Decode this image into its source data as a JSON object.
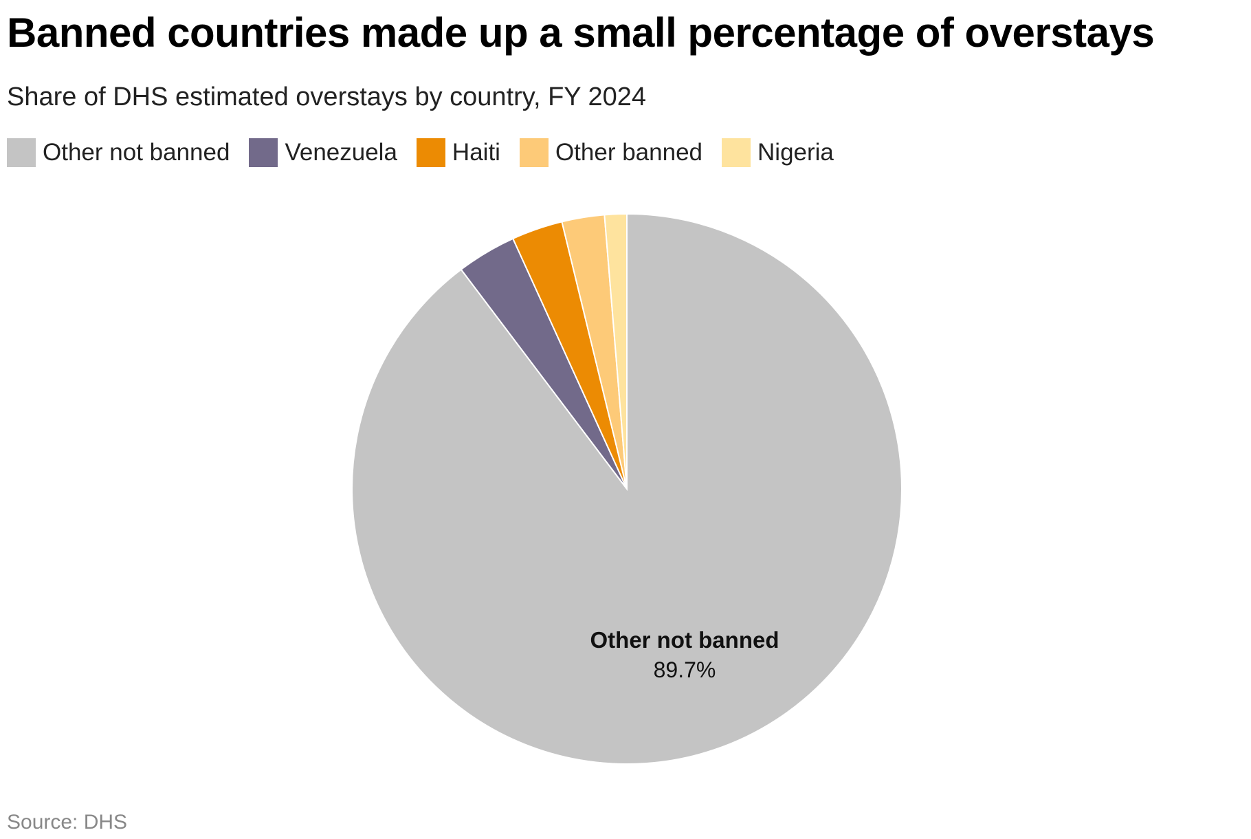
{
  "header": {
    "title": "Banned countries made up a small percentage of overstays",
    "subtitle": "Share of DHS estimated overstays by country, FY 2024"
  },
  "legend": [
    {
      "label": "Other not banned",
      "color": "#c4c4c4"
    },
    {
      "label": "Venezuela",
      "color": "#726a8a"
    },
    {
      "label": "Haiti",
      "color": "#ec8b03"
    },
    {
      "label": "Other banned",
      "color": "#fdca78"
    },
    {
      "label": "Nigeria",
      "color": "#fee39e"
    }
  ],
  "slice_label": {
    "name": "Other not banned",
    "value": "89.7%"
  },
  "footer": {
    "source": "Source: DHS"
  },
  "chart_data": {
    "type": "pie",
    "title": "Banned countries made up a small percentage of overstays",
    "subtitle": "Share of DHS estimated overstays by country, FY 2024",
    "categories": [
      "Other not banned",
      "Venezuela",
      "Haiti",
      "Other banned",
      "Nigeria"
    ],
    "values": [
      89.7,
      3.5,
      3.0,
      2.5,
      1.3
    ],
    "colors": [
      "#c4c4c4",
      "#726a8a",
      "#ec8b03",
      "#fdca78",
      "#fee39e"
    ],
    "unit": "%",
    "legend_position": "top",
    "start_angle": "12 o'clock, clockwise",
    "annotations": [
      {
        "slice": "Other not banned",
        "text": "89.7%"
      }
    ],
    "source": "DHS"
  }
}
